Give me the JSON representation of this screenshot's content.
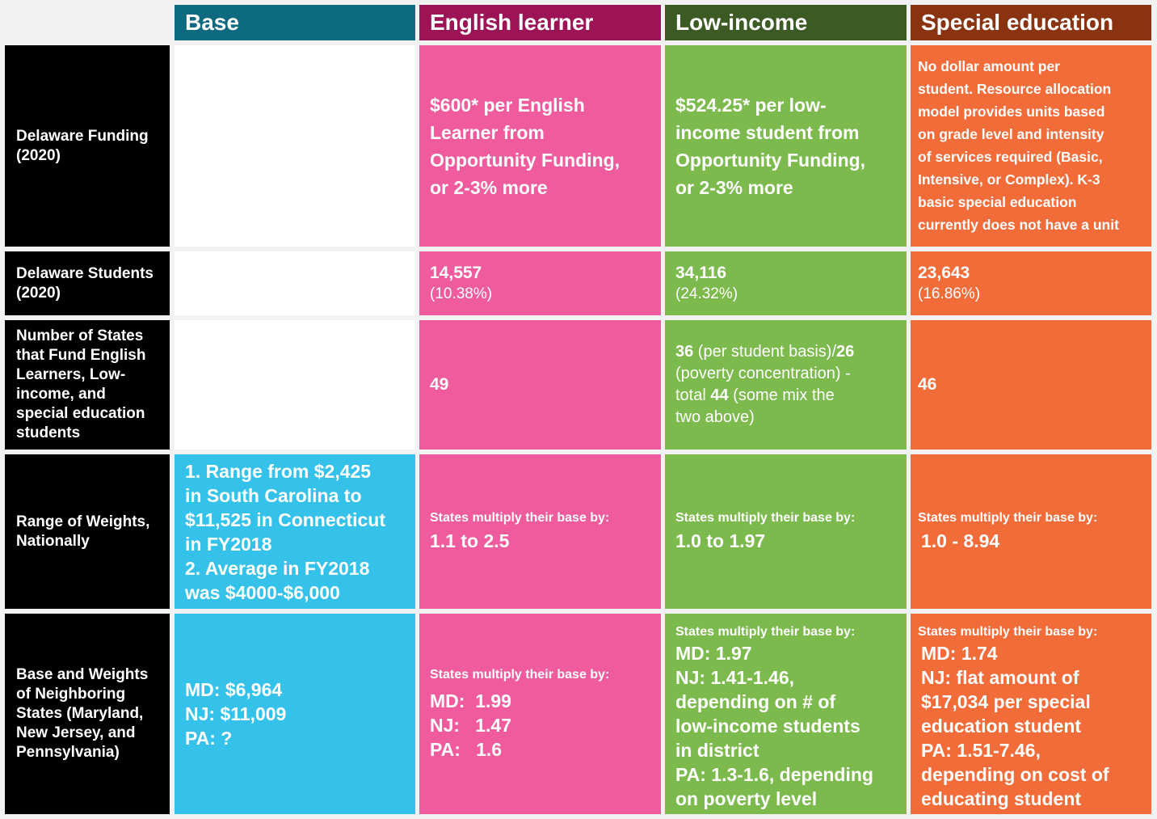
{
  "columns": {
    "base": {
      "label": "Base",
      "color": "#0e6a7f"
    },
    "english_learner": {
      "label": "English learner",
      "color": "#9c1356"
    },
    "low_income": {
      "label": "Low-income",
      "color": "#3c5a23"
    },
    "special_education": {
      "label": "Special education",
      "color": "#8a3310"
    }
  },
  "cell_colors": {
    "base": "#35c2ea",
    "english_learner": "#ef5b9c",
    "low_income": "#7cba4d",
    "special_education": "#f26c3a",
    "row_label": "#000000"
  },
  "rows": {
    "funding": {
      "label": "Delaware Funding (2020)",
      "english_learner": [
        "$600* per English",
        "Learner from",
        "Opportunity Funding,",
        "or 2-3% more"
      ],
      "low_income": [
        "$524.25* per low-",
        "income student from",
        "Opportunity Funding,",
        "or 2-3% more"
      ],
      "special_education": [
        "No dollar amount per",
        "student. Resource allocation",
        "model provides units based",
        "on grade level and intensity",
        "of services required (Basic,",
        "Intensive, or Complex). K-3",
        "basic special education",
        "currently does not have a unit"
      ]
    },
    "students": {
      "label": "Delaware Students (2020)",
      "english_learner": {
        "count": "14,557",
        "percent": "(10.38%)"
      },
      "low_income": {
        "count": "34,116",
        "percent": "(24.32%)"
      },
      "special_education": {
        "count": "23,643",
        "percent": "(16.86%)"
      }
    },
    "states": {
      "label": "Number of States that Fund English Learners, Low-income, and special education students",
      "english_learner": "49",
      "low_income": {
        "n1": "36",
        "t1": " (per student basis)/",
        "n2": "26",
        "t2": "(poverty concentration) -",
        "t3": "total ",
        "n3": "44",
        "t4": " (some mix the",
        "t5": "two above)"
      },
      "special_education": "46"
    },
    "weights": {
      "label": "Range of Weights, Nationally",
      "base": [
        "1. Range from $2,425",
        "in South Carolina to",
        "$11,525 in Connecticut",
        "in FY2018",
        "2. Average in FY2018",
        "was $4000-$6,000"
      ],
      "prefix": "States multiply their base by:",
      "english_learner": "1.1 to 2.5",
      "low_income": "1.0 to 1.97",
      "special_education": "1.0 - 8.94"
    },
    "neighbors": {
      "label": "Base and Weights of Neighboring States (Maryland, New Jersey, and Pennsylvania)",
      "base": [
        "MD: $6,964",
        "NJ: $11,009",
        "PA: ?"
      ],
      "prefix": "States multiply their base by:",
      "english_learner": [
        "MD:  1.99",
        "NJ:   1.47",
        "PA:   1.6"
      ],
      "low_income": [
        "MD: 1.97",
        "NJ: 1.41-1.46,",
        "depending on # of",
        "low-income students",
        "in district",
        "PA: 1.3-1.6, depending",
        "on poverty level"
      ],
      "special_education": [
        "MD: 1.74",
        "NJ: flat amount of",
        "$17,034 per special",
        "education student",
        "PA: 1.51-7.46,",
        "depending on cost of",
        "educating student"
      ]
    }
  }
}
